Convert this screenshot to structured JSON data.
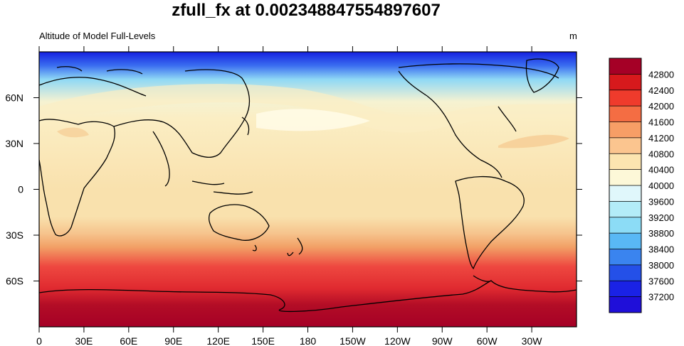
{
  "title": "zfull_fx at 0.002348847554897607",
  "subtitle_left": "Altitude of Model Full-Levels",
  "subtitle_right": "m",
  "map": {
    "projection": "cylindrical-equidistant",
    "center_longitude": 180,
    "coastlines": true,
    "lon_labels": [
      "0",
      "30E",
      "60E",
      "90E",
      "120E",
      "150E",
      "180",
      "150W",
      "120W",
      "90W",
      "60W",
      "30W"
    ],
    "lat_labels": [
      "60N",
      "30N",
      "0",
      "30S",
      "60S"
    ],
    "field_colors": {
      "arctic_top": "#1520e0",
      "arctic_mid": "#3a6df0",
      "arctic_low": "#8fd8f5",
      "subpolar": "#f5f2d2",
      "midlat": "#fbeec4",
      "tropics": "#f9e1ad",
      "south_sub": "#f6c48d",
      "south_30": "#f2a066",
      "south_40": "#ee4840",
      "south_55": "#e02a30",
      "south_70": "#b30d26",
      "antarctic": "#a50026"
    }
  },
  "colorbar": {
    "labels": [
      "42800",
      "42400",
      "42000",
      "41600",
      "41200",
      "40800",
      "40400",
      "40000",
      "39600",
      "39200",
      "38800",
      "38400",
      "38000",
      "37600",
      "37200"
    ],
    "colors": [
      "#a50026",
      "#d7191c",
      "#ef3b2c",
      "#f46d43",
      "#f79e66",
      "#fbc58f",
      "#fce5b0",
      "#fdf8d8",
      "#e0f7fb",
      "#b3ecf8",
      "#8cdcf6",
      "#59b8f5",
      "#3a84ef",
      "#2450e8",
      "#1a22e6",
      "#1f0fd9"
    ]
  }
}
